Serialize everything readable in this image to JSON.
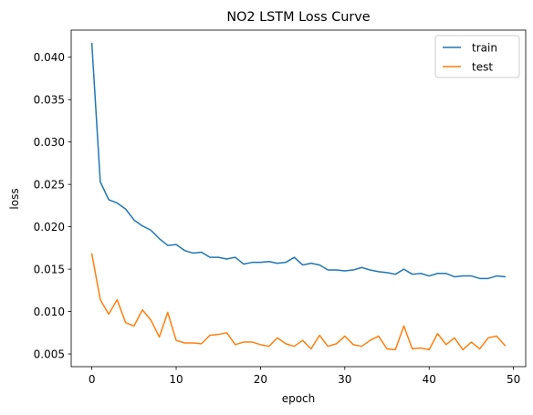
{
  "chart_data": {
    "type": "line",
    "title": "NO2 LSTM Loss Curve",
    "xlabel": "epoch",
    "ylabel": "loss",
    "xlim": [
      -2.45,
      51.45
    ],
    "ylim": [
      0.0035,
      0.0432
    ],
    "xticks": [
      0,
      10,
      20,
      30,
      40,
      50
    ],
    "xtick_labels": [
      "0",
      "10",
      "20",
      "30",
      "40",
      "50"
    ],
    "yticks": [
      0.005,
      0.01,
      0.015,
      0.02,
      0.025,
      0.03,
      0.035,
      0.04
    ],
    "ytick_labels": [
      "0.005",
      "0.010",
      "0.015",
      "0.020",
      "0.025",
      "0.030",
      "0.035",
      "0.040"
    ],
    "grid": false,
    "legend_position": "upper right",
    "x": [
      0,
      1,
      2,
      3,
      4,
      5,
      6,
      7,
      8,
      9,
      10,
      11,
      12,
      13,
      14,
      15,
      16,
      17,
      18,
      19,
      20,
      21,
      22,
      23,
      24,
      25,
      26,
      27,
      28,
      29,
      30,
      31,
      32,
      33,
      34,
      35,
      36,
      37,
      38,
      39,
      40,
      41,
      42,
      43,
      44,
      45,
      46,
      47,
      48,
      49
    ],
    "series": [
      {
        "name": "train",
        "color": "#1f77b4",
        "values": [
          0.0416,
          0.0253,
          0.0232,
          0.0228,
          0.0221,
          0.0208,
          0.0201,
          0.0196,
          0.0186,
          0.0178,
          0.0179,
          0.0172,
          0.0169,
          0.017,
          0.0164,
          0.0164,
          0.0162,
          0.0164,
          0.0156,
          0.0158,
          0.0158,
          0.0159,
          0.0157,
          0.0158,
          0.0164,
          0.0155,
          0.0157,
          0.0155,
          0.0149,
          0.0149,
          0.0148,
          0.0149,
          0.0152,
          0.0149,
          0.0147,
          0.0146,
          0.0144,
          0.015,
          0.0144,
          0.0145,
          0.0142,
          0.0145,
          0.0145,
          0.0141,
          0.0142,
          0.0142,
          0.0139,
          0.0139,
          0.0142,
          0.0141
        ]
      },
      {
        "name": "test",
        "color": "#ff7f0e",
        "values": [
          0.0168,
          0.0114,
          0.0097,
          0.0114,
          0.0087,
          0.0083,
          0.0102,
          0.009,
          0.007,
          0.0099,
          0.0066,
          0.0063,
          0.0063,
          0.0062,
          0.0072,
          0.0073,
          0.0075,
          0.0061,
          0.0064,
          0.0064,
          0.0061,
          0.0059,
          0.0069,
          0.0062,
          0.0059,
          0.0066,
          0.0056,
          0.0072,
          0.0059,
          0.0062,
          0.0071,
          0.0061,
          0.0059,
          0.0066,
          0.0071,
          0.0056,
          0.0055,
          0.0083,
          0.0056,
          0.0057,
          0.0055,
          0.0074,
          0.0061,
          0.0069,
          0.0055,
          0.0064,
          0.0056,
          0.0069,
          0.0071,
          0.006
        ]
      }
    ]
  }
}
